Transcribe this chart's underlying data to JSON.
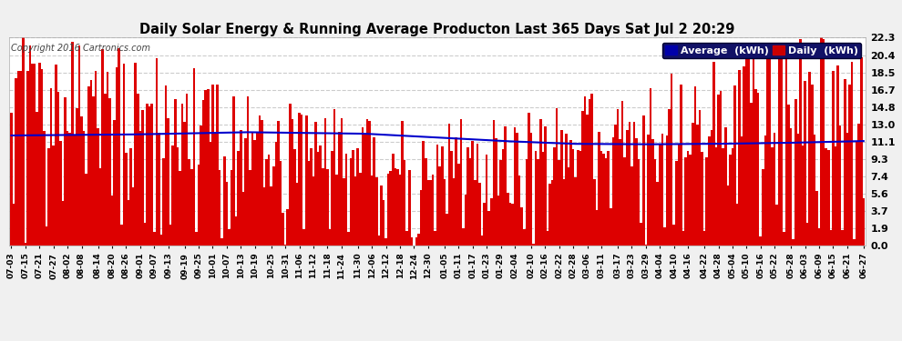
{
  "title": "Daily Solar Energy & Running Average Producton Last 365 Days Sat Jul 2 20:29",
  "copyright": "Copyright 2016 Cartronics.com",
  "yticks": [
    0.0,
    1.9,
    3.7,
    5.6,
    7.4,
    9.3,
    11.1,
    13.0,
    14.8,
    16.7,
    18.5,
    20.4,
    22.3
  ],
  "ymax": 22.3,
  "ymin": 0.0,
  "bar_color": "#dd0000",
  "avg_color": "#0000cc",
  "bg_color": "#f0f0f0",
  "plot_bg_color": "#ffffff",
  "grid_color": "#cccccc",
  "title_color": "#000000",
  "legend_avg_bg": "#0000aa",
  "legend_daily_bg": "#cc0000",
  "n_days": 365,
  "x_labels": [
    "07-03",
    "07-15",
    "07-21",
    "07-27",
    "08-02",
    "08-08",
    "08-14",
    "08-20",
    "08-26",
    "09-01",
    "09-07",
    "09-13",
    "09-19",
    "09-25",
    "10-01",
    "10-07",
    "10-13",
    "10-19",
    "10-25",
    "10-31",
    "11-06",
    "11-12",
    "11-18",
    "11-24",
    "11-30",
    "12-06",
    "12-12",
    "12-18",
    "12-24",
    "12-30",
    "01-05",
    "01-11",
    "01-17",
    "01-23",
    "01-29",
    "02-04",
    "02-10",
    "02-16",
    "02-22",
    "02-28",
    "03-06",
    "03-11",
    "03-17",
    "03-23",
    "03-29",
    "04-04",
    "04-10",
    "04-16",
    "04-22",
    "04-28",
    "05-04",
    "05-10",
    "05-16",
    "05-22",
    "05-28",
    "06-03",
    "06-09",
    "06-15",
    "06-21",
    "06-27"
  ]
}
